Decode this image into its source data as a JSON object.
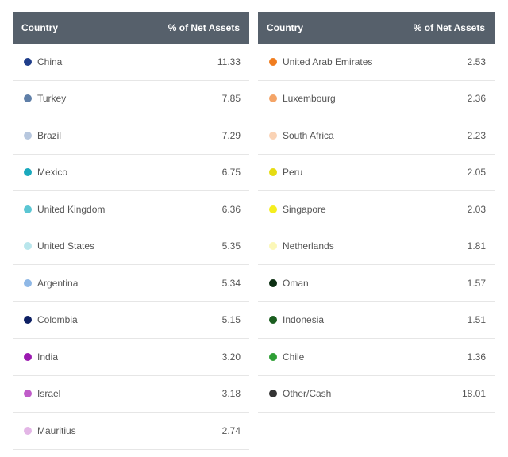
{
  "header": {
    "country_label": "Country",
    "value_label": "% of Net Assets"
  },
  "left_rows": [
    {
      "country": "China",
      "value": "11.33",
      "color": "#1f3d8a"
    },
    {
      "country": "Turkey",
      "value": "7.85",
      "color": "#5f7fa8"
    },
    {
      "country": "Brazil",
      "value": "7.29",
      "color": "#b7c7de"
    },
    {
      "country": "Mexico",
      "value": "6.75",
      "color": "#1aa9bd"
    },
    {
      "country": "United Kingdom",
      "value": "6.36",
      "color": "#5bc6d3"
    },
    {
      "country": "United States",
      "value": "5.35",
      "color": "#b9e6ec"
    },
    {
      "country": "Argentina",
      "value": "5.34",
      "color": "#8fb8e6"
    },
    {
      "country": "Colombia",
      "value": "5.15",
      "color": "#0d1f63"
    },
    {
      "country": "India",
      "value": "3.20",
      "color": "#9b19b0"
    },
    {
      "country": "Israel",
      "value": "3.18",
      "color": "#c05cc9"
    },
    {
      "country": "Mauritius",
      "value": "2.74",
      "color": "#e3b6e6"
    }
  ],
  "right_rows": [
    {
      "country": "United Arab Emirates",
      "value": "2.53",
      "color": "#f07d1f"
    },
    {
      "country": "Luxembourg",
      "value": "2.36",
      "color": "#f4a467"
    },
    {
      "country": "South Africa",
      "value": "2.23",
      "color": "#fad3b5"
    },
    {
      "country": "Peru",
      "value": "2.05",
      "color": "#e6dc12"
    },
    {
      "country": "Singapore",
      "value": "2.03",
      "color": "#f5ee1e"
    },
    {
      "country": "Netherlands",
      "value": "1.81",
      "color": "#fbf7b7"
    },
    {
      "country": "Oman",
      "value": "1.57",
      "color": "#0c2f12"
    },
    {
      "country": "Indonesia",
      "value": "1.51",
      "color": "#1b5e20"
    },
    {
      "country": "Chile",
      "value": "1.36",
      "color": "#2e9e35"
    },
    {
      "country": "Other/Cash",
      "value": "18.01",
      "color": "#333333"
    }
  ]
}
